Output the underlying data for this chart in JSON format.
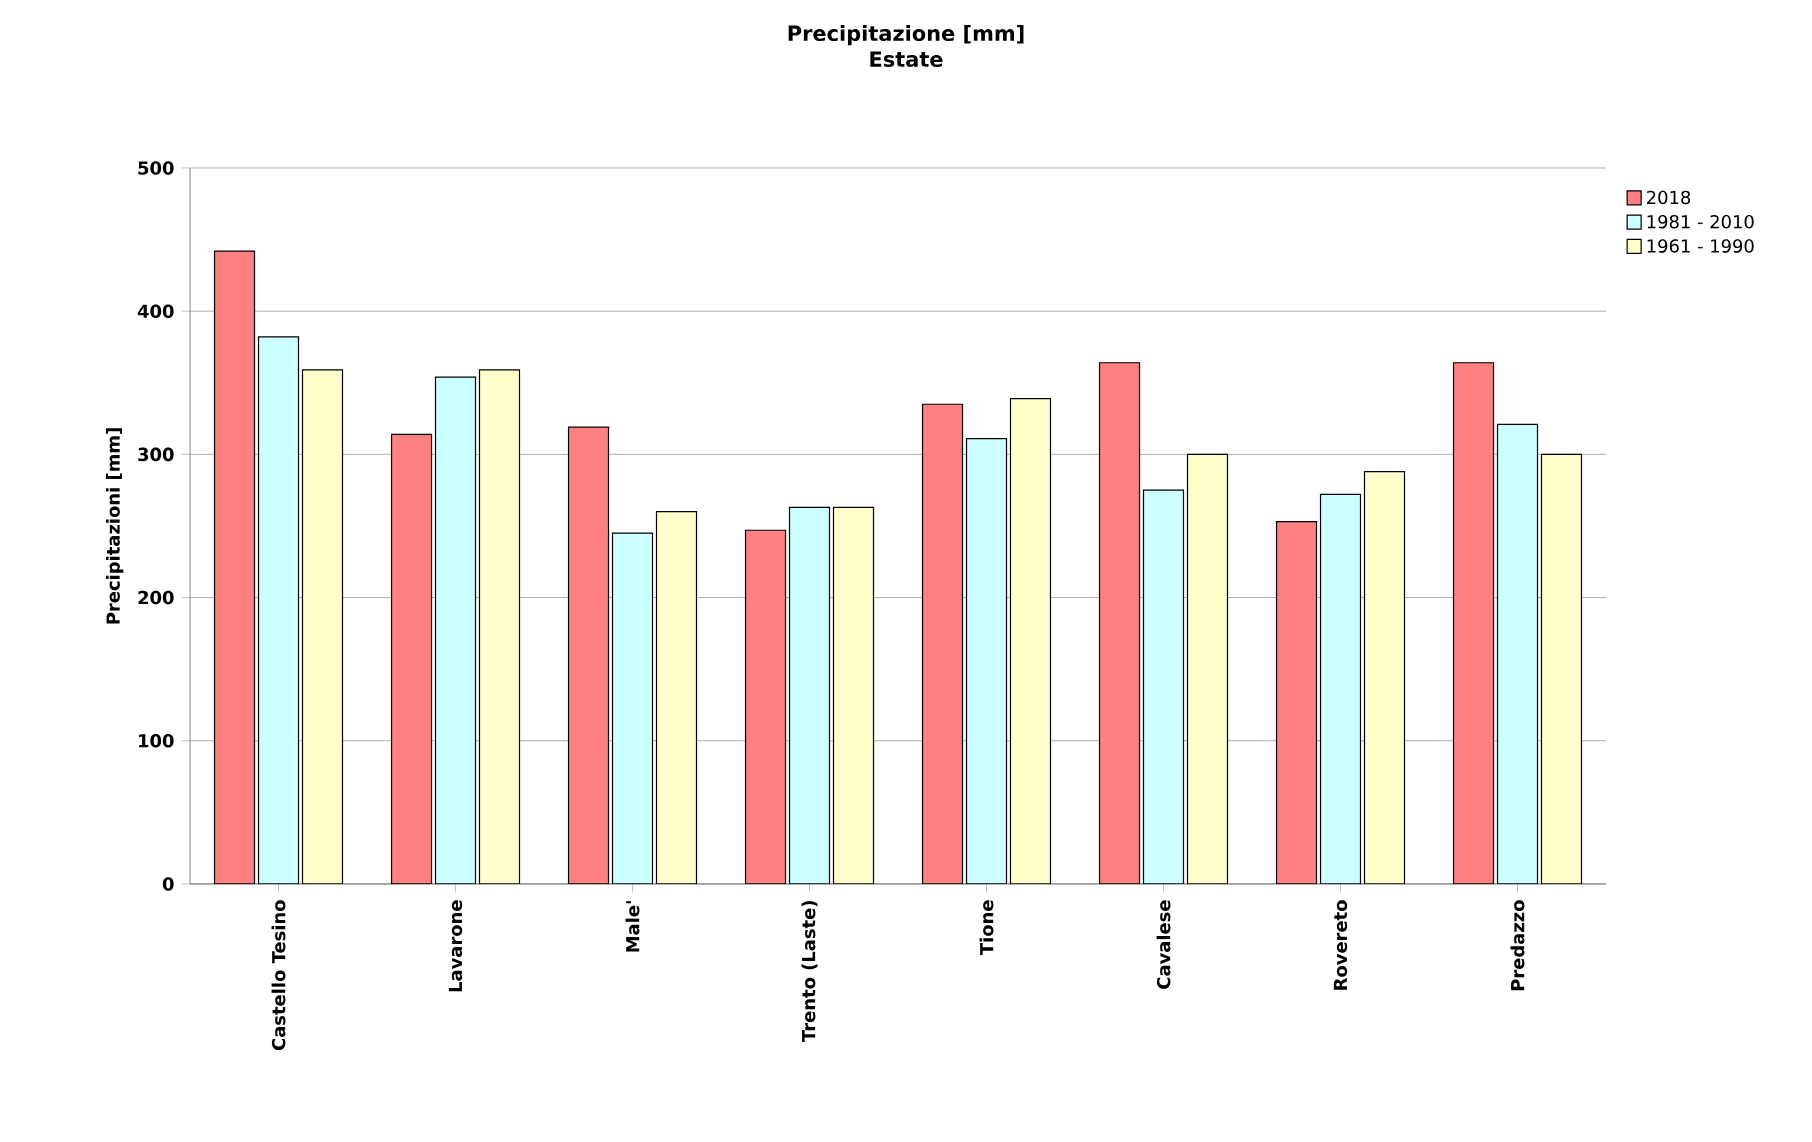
{
  "chart_data": {
    "type": "bar",
    "title": "Precipitazione [mm]",
    "subtitle": "Estate",
    "ylabel": "Precipitazioni [mm]",
    "categories": [
      "Castello Tesino",
      "Lavarone",
      "Male'",
      "Trento (Laste)",
      "Tione",
      "Cavalese",
      "Rovereto",
      "Predazzo"
    ],
    "series": [
      {
        "name": "2018",
        "color": "#ff8080",
        "values": [
          442,
          314,
          319,
          247,
          335,
          364,
          253,
          364
        ]
      },
      {
        "name": "1981 - 2010",
        "color": "#ccffff",
        "values": [
          382,
          354,
          245,
          263,
          311,
          275,
          272,
          321
        ]
      },
      {
        "name": "1961 - 1990",
        "color": "#ffffcc",
        "values": [
          359,
          359,
          260,
          263,
          339,
          300,
          288,
          300
        ]
      }
    ],
    "ylim": [
      0,
      500
    ],
    "yticks": [
      0,
      100,
      200,
      300,
      400,
      500
    ],
    "grid": "y",
    "legend": "top right"
  }
}
